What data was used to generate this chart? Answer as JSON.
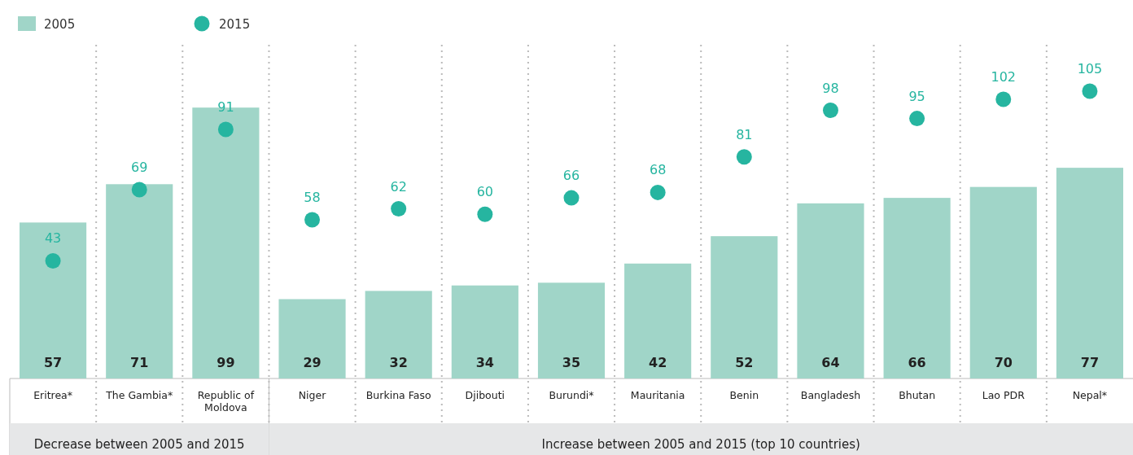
{
  "chart_data": {
    "type": "bar",
    "categories": [
      "Eritrea*",
      "The Gambia*",
      "Republic of Moldova",
      "Niger",
      "Burkina Faso",
      "Djibouti",
      "Burundi*",
      "Mauritania",
      "Benin",
      "Bangladesh",
      "Bhutan",
      "Lao PDR",
      "Nepal*"
    ],
    "series": [
      {
        "name": "2005",
        "color": "#a0d5c8",
        "values": [
          57,
          71,
          99,
          29,
          32,
          34,
          35,
          42,
          52,
          64,
          66,
          70,
          77
        ]
      },
      {
        "name": "2015",
        "type": "scatter",
        "color": "#26b5a0",
        "values": [
          43,
          69,
          91,
          58,
          62,
          60,
          66,
          68,
          81,
          98,
          95,
          102,
          105
        ]
      }
    ],
    "data_labels": true,
    "legend": "top left",
    "marker": "circle",
    "annotations": [
      "Decrease between 2005 and 2015",
      "Increase between 2005 and 2015 (top 10 countries)"
    ]
  }
}
